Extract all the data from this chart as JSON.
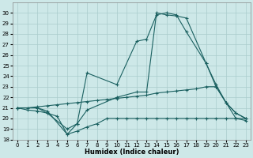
{
  "bg_color": "#cde8e8",
  "grid_color": "#aacccc",
  "line_color": "#1a6060",
  "xlabel": "Humidex (Indice chaleur)",
  "xlim": [
    -0.5,
    23.5
  ],
  "ylim": [
    18,
    31
  ],
  "yticks": [
    18,
    19,
    20,
    21,
    22,
    23,
    24,
    25,
    26,
    27,
    28,
    29,
    30
  ],
  "xticks": [
    0,
    1,
    2,
    3,
    4,
    5,
    6,
    7,
    8,
    9,
    10,
    11,
    12,
    13,
    14,
    15,
    16,
    17,
    18,
    19,
    20,
    21,
    22,
    23
  ],
  "line1_x": [
    0,
    1,
    2,
    3,
    4,
    5,
    6,
    7,
    8,
    9,
    10,
    11,
    12,
    13,
    14,
    15,
    16,
    17,
    18,
    19,
    20,
    21,
    22,
    23
  ],
  "line1_y": [
    21,
    20.8,
    20.7,
    20.5,
    20.2,
    18.5,
    18.8,
    19.2,
    19.5,
    20,
    20,
    20,
    20,
    20,
    20,
    20,
    20,
    20,
    20,
    20,
    20,
    20,
    20,
    20
  ],
  "line2_x": [
    0,
    1,
    2,
    3,
    4,
    5,
    6,
    7,
    8,
    9,
    10,
    11,
    12,
    13,
    14,
    15,
    16,
    17,
    18,
    19,
    20,
    21,
    22,
    23
  ],
  "line2_y": [
    21,
    21,
    21.1,
    21.2,
    21.3,
    21.4,
    21.5,
    21.6,
    21.7,
    21.8,
    21.9,
    22,
    22.1,
    22.2,
    22.4,
    22.5,
    22.6,
    22.7,
    22.8,
    23,
    23,
    21.5,
    20.5,
    20
  ],
  "line3_x": [
    0,
    2,
    3,
    5,
    6,
    7,
    10,
    12,
    13,
    14,
    15,
    16,
    17,
    19,
    20,
    21,
    22,
    23
  ],
  "line3_y": [
    21,
    21,
    20.7,
    18.5,
    19.5,
    24.3,
    23.2,
    27.3,
    27.5,
    29.8,
    30,
    29.8,
    28.2,
    25.2,
    23,
    21.5,
    20,
    19.8
  ],
  "line4_x": [
    0,
    2,
    3,
    5,
    6,
    7,
    10,
    12,
    13,
    14,
    15,
    16,
    17,
    19,
    20,
    21,
    22,
    23
  ],
  "line4_y": [
    21,
    21,
    20.5,
    19.0,
    19.5,
    20.8,
    22,
    22.5,
    22.5,
    30,
    29.8,
    29.7,
    29.5,
    25.2,
    23.2,
    21.5,
    20.5,
    20
  ]
}
